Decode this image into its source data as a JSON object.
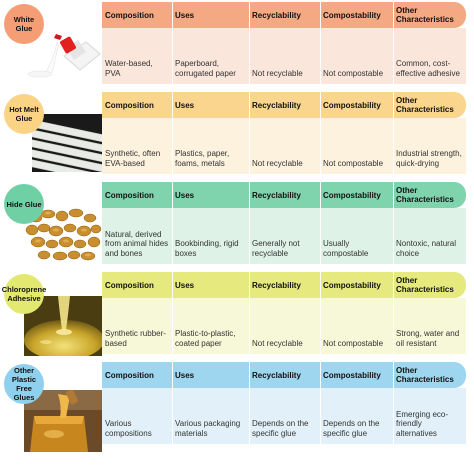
{
  "headers": {
    "composition": "Composition",
    "uses": "Uses",
    "recyclability": "Recyclability",
    "compostability": "Compostability",
    "other": "Other Characteristics"
  },
  "colors": {
    "white_glue": {
      "badge": "#f59d75",
      "header": "#f4a983",
      "body": "#fbe6db"
    },
    "hot_melt_glue": {
      "badge": "#fbd385",
      "header": "#fad58d",
      "body": "#fdf2dd"
    },
    "hide_glue": {
      "badge": "#6fd0a5",
      "header": "#7fd3ad",
      "body": "#def2e8"
    },
    "chloroprene_adhesive": {
      "badge": "#e3e870",
      "header": "#e5e97e",
      "body": "#f7f8d8"
    },
    "other_plastic_free_glues": {
      "badge": "#8fd0ee",
      "header": "#9fd6ef",
      "body": "#e2f1f9"
    }
  },
  "rows": [
    {
      "name": "White Glue",
      "composition": "Water-based, PVA",
      "uses": "Paperboard, corrugated paper",
      "recyclability": "Not recyclable",
      "compostability": "Not compostable",
      "other": "Common, cost-effective adhesive",
      "photo_icon": "glue-bottle-icon"
    },
    {
      "name": "Hot Melt Glue",
      "composition": "Synthetic, often EVA-based",
      "uses": "Plastics, paper, foams, metals",
      "recyclability": "Not recyclable",
      "compostability": "Not compostable",
      "other": "Industrial strength, quick-drying",
      "photo_icon": "glue-sticks-icon"
    },
    {
      "name": "Hide Glue",
      "composition": "Natural, derived from animal hides and bones",
      "uses": "Bookbinding, rigid boxes",
      "recyclability": "Generally not recyclable",
      "compostability": "Usually compostable",
      "other": "Nontoxic, natural choice",
      "photo_icon": "glue-granules-icon"
    },
    {
      "name": "Chloroprene Adhesive",
      "composition": "Synthetic rubber-based",
      "uses": "Plastic-to-plastic, coated paper",
      "recyclability": "Not recyclable",
      "compostability": "Not compostable",
      "other": "Strong, water and oil resistant",
      "photo_icon": "adhesive-drip-icon"
    },
    {
      "name": "Other Plastic Free Glues",
      "composition": "Various compositions",
      "uses": "Various packaging materials",
      "recyclability": "Depends on the specific glue",
      "compostability": "Depends on the specific glue",
      "other": "Emerging eco-friendly alternatives",
      "photo_icon": "honey-jar-icon"
    }
  ]
}
